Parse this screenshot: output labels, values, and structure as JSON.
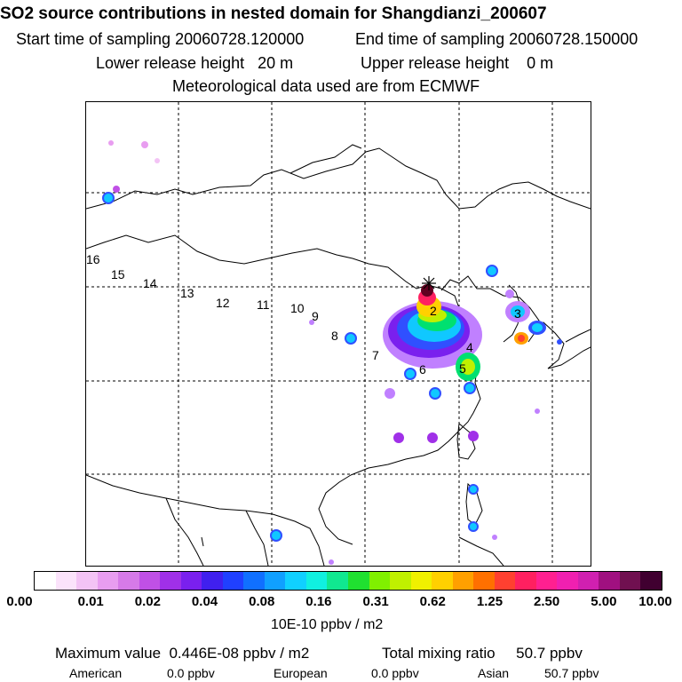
{
  "header": {
    "title": "SO2 source contributions in nested domain for Shangdianzi_200607",
    "start_label": "Start time of sampling 20060728.120000",
    "end_label": "End time of sampling 20060728.150000",
    "lower_release": "Lower release height   20 m",
    "upper_release": "Upper release height    0 m",
    "met_data": "Meteorological data used are from ECMWF"
  },
  "map": {
    "receptor_marker": "star-receptor",
    "track_labels": [
      "16",
      "15",
      "14",
      "13",
      "12",
      "11",
      "10",
      "9",
      "8",
      "7",
      "6",
      "5",
      "4",
      "3",
      "2"
    ],
    "plume_colors": {
      "low": "#c080ff",
      "mid": "#3050ff",
      "mid2": "#10c8ff",
      "high": "#00e070",
      "peak": "#ffd000",
      "max": "#600020"
    }
  },
  "colorbar": {
    "colors": [
      "#ffffff",
      "#fbe3fb",
      "#f3c3f5",
      "#e89df0",
      "#d67ae8",
      "#c050e6",
      "#a030e8",
      "#7a20ee",
      "#4020ee",
      "#2040ff",
      "#1070ff",
      "#10a0ff",
      "#10d0ff",
      "#10f0e0",
      "#10e890",
      "#20e030",
      "#80f000",
      "#c0f000",
      "#f0f000",
      "#ffd000",
      "#ffa000",
      "#ff7000",
      "#ff4030",
      "#ff2060",
      "#ff2090",
      "#f020b0",
      "#d020b0",
      "#a01080",
      "#701050",
      "#400030"
    ],
    "tick_labels": [
      "0.00",
      "0.01",
      "0.02",
      "0.04",
      "0.08",
      "0.16",
      "0.31",
      "0.62",
      "1.25",
      "2.50",
      "5.00",
      "10.00"
    ],
    "unit": "10E-10 ppbv / m2"
  },
  "stats": {
    "max_value": "Maximum value  0.446E-08 ppbv / m2",
    "total_mixing": "Total mixing ratio     50.7 ppbv",
    "american_label": "American",
    "american_value": "0.0 ppbv",
    "european_label": "European",
    "european_value": "0.0 ppbv",
    "asian_label": "Asian",
    "asian_value": "50.7 ppbv"
  }
}
